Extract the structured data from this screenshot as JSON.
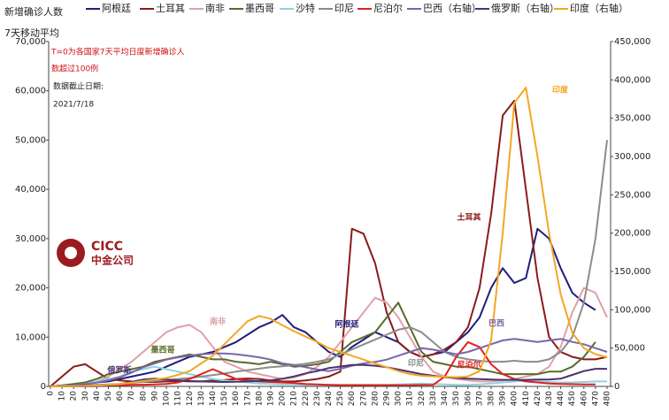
{
  "chart_data": {
    "type": "line",
    "ylabel_lines": [
      "新增确诊人数",
      "7天移动平均"
    ],
    "annotations": [
      "T=0为各国家7天平均日度新增确诊人",
      "数超过100例",
      "数据截止日期:",
      "2021/7/18"
    ],
    "x": [
      0,
      10,
      20,
      30,
      40,
      50,
      60,
      70,
      80,
      90,
      100,
      110,
      120,
      130,
      140,
      150,
      160,
      170,
      180,
      190,
      200,
      210,
      220,
      230,
      240,
      250,
      260,
      270,
      280,
      290,
      300,
      310,
      320,
      330,
      340,
      350,
      360,
      370,
      380,
      390,
      400,
      410,
      420,
      430,
      440,
      450,
      460,
      470,
      480
    ],
    "xlim": [
      0,
      480
    ],
    "xticks": [
      0,
      10,
      20,
      30,
      40,
      50,
      60,
      70,
      80,
      90,
      100,
      110,
      120,
      130,
      140,
      150,
      160,
      170,
      180,
      190,
      200,
      210,
      220,
      230,
      240,
      250,
      260,
      270,
      280,
      290,
      300,
      310,
      320,
      330,
      340,
      350,
      360,
      370,
      380,
      390,
      400,
      410,
      420,
      430,
      440,
      450,
      460,
      470,
      480
    ],
    "ylim": [
      0,
      70000
    ],
    "yticks": [
      0,
      {
        "value": 10000,
        "label": "10,000"
      },
      {
        "value": 20000,
        "label": "20,000"
      },
      {
        "value": 30000,
        "label": "30,000"
      },
      {
        "value": 40000,
        "label": "40,000"
      },
      {
        "value": 50000,
        "label": "50,000"
      },
      {
        "value": 60000,
        "label": "60,000"
      },
      {
        "value": 70000,
        "label": "70,000"
      }
    ],
    "y2lim": [
      0,
      450000
    ],
    "y2ticks": [
      0,
      {
        "value": 50000,
        "label": "50,000"
      },
      {
        "value": 100000,
        "label": "100,000"
      },
      {
        "value": 150000,
        "label": "150,000"
      },
      {
        "value": 200000,
        "label": "200,000"
      },
      {
        "value": 250000,
        "label": "250,000"
      },
      {
        "value": 300000,
        "label": "300,000"
      },
      {
        "value": 350000,
        "label": "350,000"
      },
      {
        "value": 400000,
        "label": "400,000"
      },
      {
        "value": 450000,
        "label": "450,000"
      }
    ],
    "legend": "top",
    "series": [
      {
        "name": "阿根廷",
        "label": "阿根廷",
        "color": "#1f1f7a",
        "values": [
          0,
          200,
          300,
          500,
          800,
          1000,
          1500,
          2000,
          2500,
          3000,
          4000,
          5000,
          6000,
          6500,
          7000,
          8000,
          9000,
          10500,
          12000,
          13000,
          14500,
          12000,
          11000,
          9000,
          7000,
          6000,
          8000,
          9500,
          11000,
          10000,
          9000,
          7000,
          6000,
          6500,
          7000,
          9000,
          11000,
          14000,
          20000,
          24000,
          21000,
          22000,
          32000,
          30000,
          24000,
          19000,
          17000,
          15500,
          null
        ]
      },
      {
        "name": "土耳其",
        "label": "土耳其",
        "color": "#8b1a1a",
        "values": [
          0,
          2000,
          4000,
          4500,
          3000,
          1500,
          1200,
          1000,
          900,
          900,
          1000,
          1100,
          1000,
          1000,
          1200,
          1300,
          1500,
          1600,
          1500,
          1200,
          1000,
          1000,
          1200,
          1500,
          2000,
          3000,
          32000,
          31000,
          25000,
          15000,
          9000,
          7000,
          6000,
          6500,
          7500,
          9000,
          12000,
          20000,
          35000,
          55000,
          58000,
          40000,
          22000,
          10000,
          7000,
          6000,
          5500,
          5500,
          6000
        ]
      },
      {
        "name": "南非",
        "label": "南非",
        "color": "#e0a0a8",
        "values": [
          0,
          100,
          200,
          500,
          1000,
          2000,
          3500,
          5000,
          7000,
          9000,
          11000,
          12000,
          12500,
          11000,
          8000,
          5000,
          4000,
          3000,
          2500,
          2000,
          1500,
          1800,
          2500,
          4000,
          6000,
          9000,
          12000,
          15000,
          18000,
          17000,
          14000,
          10000,
          6000,
          3000,
          2000,
          1500,
          1200,
          1000,
          1000,
          1200,
          1500,
          2000,
          2500,
          4000,
          8000,
          15000,
          20000,
          19000,
          14000
        ]
      },
      {
        "name": "墨西哥",
        "label": "墨西哥",
        "color": "#5a6b2a",
        "values": [
          0,
          200,
          500,
          800,
          1500,
          2500,
          3000,
          3500,
          4000,
          5000,
          5500,
          6000,
          6500,
          6000,
          5500,
          5500,
          5000,
          4800,
          4500,
          5000,
          4500,
          4000,
          4200,
          4500,
          5000,
          7000,
          9000,
          10000,
          11000,
          14000,
          17000,
          12000,
          7000,
          5000,
          4500,
          4000,
          4000,
          3500,
          3000,
          2500,
          2500,
          2500,
          2500,
          3000,
          3000,
          4000,
          6000,
          9000,
          null
        ]
      },
      {
        "name": "沙特",
        "color": "#8fd3e0",
        "values": [
          0,
          100,
          200,
          500,
          1000,
          1500,
          2000,
          3000,
          3500,
          4000,
          3500,
          3000,
          2500,
          2000,
          1500,
          1200,
          1000,
          800,
          600,
          500,
          400,
          400,
          300,
          300,
          300,
          300,
          300,
          300,
          300,
          300,
          400,
          500,
          600,
          500,
          400,
          300,
          300,
          400,
          600,
          800,
          1000,
          1200,
          1000,
          900,
          800,
          800,
          900,
          1000,
          1000
        ]
      },
      {
        "name": "印尼",
        "label": "印尼",
        "color": "#8c8c8c",
        "values": [
          0,
          50,
          100,
          200,
          300,
          400,
          500,
          700,
          900,
          1100,
          1300,
          1500,
          1700,
          2000,
          2300,
          2600,
          3000,
          3300,
          3600,
          3900,
          4100,
          4300,
          4600,
          5000,
          5500,
          6500,
          7500,
          8500,
          9500,
          10500,
          11500,
          12000,
          11000,
          9000,
          7000,
          6000,
          5500,
          5200,
          5000,
          5000,
          5200,
          5000,
          5000,
          5500,
          7000,
          10000,
          17000,
          30000,
          50000
        ]
      },
      {
        "name": "尼泊尔",
        "label": "尼泊尔",
        "color": "#e02020",
        "values": [
          0,
          50,
          80,
          100,
          150,
          200,
          250,
          300,
          350,
          400,
          500,
          800,
          1500,
          2500,
          3500,
          2500,
          1500,
          1200,
          1000,
          900,
          800,
          700,
          500,
          400,
          300,
          250,
          250,
          250,
          250,
          250,
          250,
          250,
          280,
          300,
          2000,
          6000,
          9000,
          8000,
          4500,
          2500,
          1500,
          1000,
          800,
          600,
          500,
          450,
          400,
          400,
          null
        ]
      },
      {
        "name": "巴西（右轴）",
        "label": "巴西",
        "axis": "y2",
        "color": "#7a66a8",
        "values": [
          0,
          500,
          1500,
          3000,
          5000,
          8000,
          12000,
          18000,
          25000,
          30000,
          35000,
          38000,
          40000,
          42000,
          43000,
          43000,
          42000,
          40000,
          38000,
          35000,
          30000,
          28000,
          25000,
          22000,
          20000,
          23000,
          27000,
          30000,
          32000,
          35000,
          40000,
          45000,
          50000,
          48000,
          45000,
          42000,
          45000,
          50000,
          55000,
          60000,
          62000,
          60000,
          58000,
          60000,
          62000,
          58000,
          55000,
          50000,
          45000
        ]
      },
      {
        "name": "俄罗斯（右轴）",
        "label": "俄罗斯",
        "axis": "y2",
        "color": "#4b3270",
        "values": [
          0,
          0,
          0,
          0,
          200,
          1000,
          3000,
          6000,
          9000,
          10000,
          9000,
          8000,
          7000,
          6500,
          6000,
          5800,
          6000,
          6500,
          7000,
          8000,
          10000,
          13000,
          17000,
          20000,
          24000,
          26000,
          28000,
          28000,
          27000,
          25000,
          22000,
          19000,
          16000,
          14000,
          12000,
          11000,
          10000,
          9500,
          9000,
          8500,
          8500,
          8500,
          9000,
          9000,
          10000,
          15000,
          20000,
          23000,
          23000
        ]
      },
      {
        "name": "印度（右轴）",
        "label": "印度",
        "axis": "y2",
        "color": "#f5a623",
        "values": [
          0,
          100,
          200,
          500,
          1000,
          2000,
          3000,
          5000,
          7000,
          9000,
          11000,
          15000,
          20000,
          30000,
          40000,
          55000,
          70000,
          85000,
          92000,
          88000,
          80000,
          72000,
          65000,
          58000,
          50000,
          45000,
          40000,
          35000,
          30000,
          25000,
          20000,
          16000,
          14000,
          13000,
          12500,
          12000,
          13000,
          20000,
          60000,
          200000,
          370000,
          390000,
          300000,
          200000,
          120000,
          70000,
          50000,
          42000,
          38000
        ]
      }
    ]
  },
  "logo": {
    "name": "CICC",
    "name_cn": "中金公司"
  }
}
